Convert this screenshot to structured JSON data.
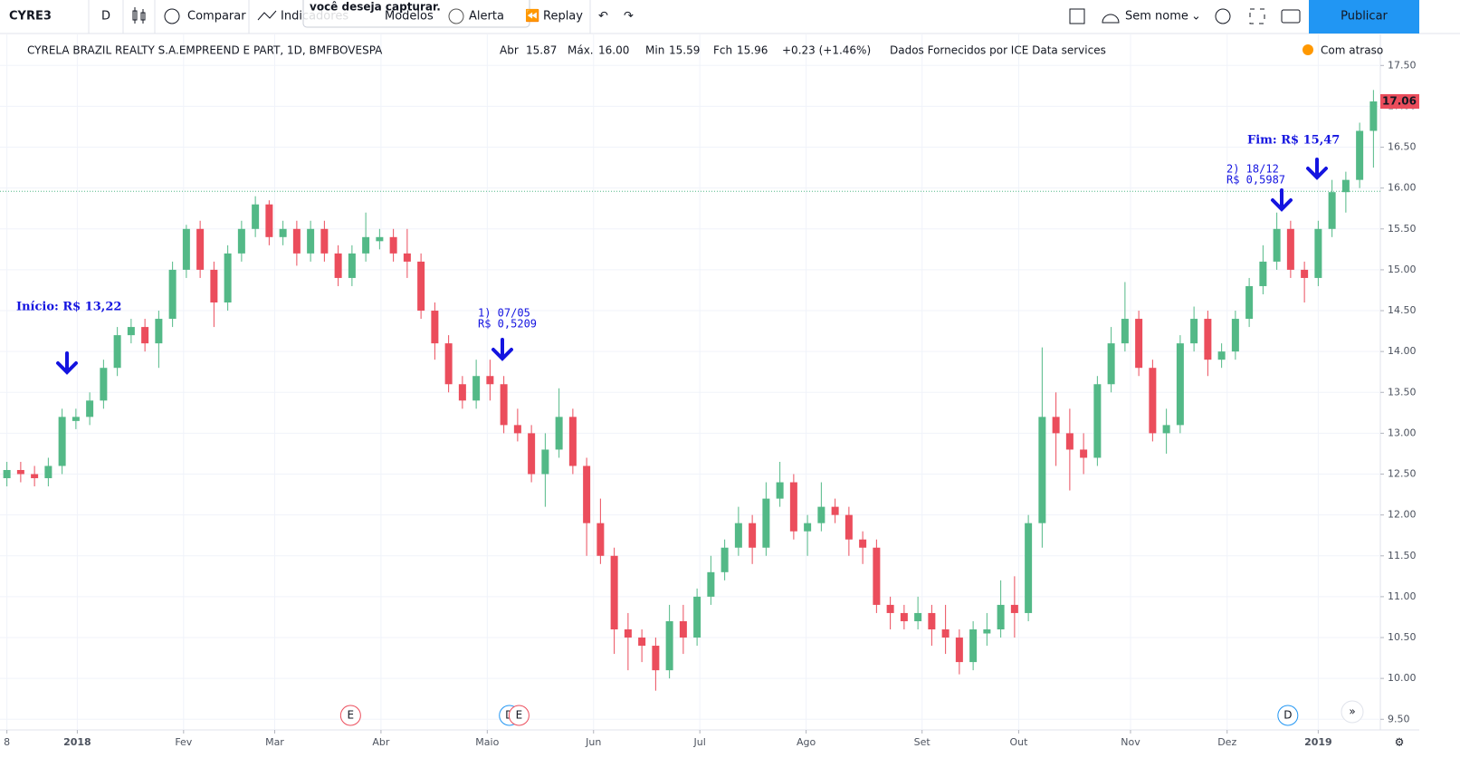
{
  "toolbar": {
    "symbol": "CYRE3",
    "interval": "D",
    "compare": "Comparar",
    "indicators": "Indicadores",
    "templates": "Modelos",
    "alert": "Alerta",
    "replay": "Replay",
    "layout": "Sem nome",
    "publish": "Publicar",
    "tooltip": "você deseja capturar."
  },
  "chart_data": {
    "type": "candlestick",
    "title": "CYRELA BRAZIL REALTY S.A.EMPREEND E PART, 1D, BMFBOVESPA",
    "legend": {
      "open_label": "Abr",
      "open": "15.87",
      "high_label": "Máx.",
      "high": "16.00",
      "low_label": "Min",
      "low": "15.59",
      "close_label": "Fch",
      "close": "15.96",
      "change": "+0.23 (+1.46%)",
      "source": "Dados Fornecidos por ICE Data services",
      "delay": "Com atraso"
    },
    "up_color": "#53b987",
    "down_color": "#eb4d5c",
    "ohlc": [
      [
        12.45,
        12.65,
        12.35,
        12.55
      ],
      [
        12.55,
        12.65,
        12.4,
        12.5
      ],
      [
        12.5,
        12.6,
        12.35,
        12.45
      ],
      [
        12.45,
        12.7,
        12.35,
        12.6
      ],
      [
        12.6,
        13.3,
        12.5,
        13.2
      ],
      [
        13.15,
        13.3,
        13.05,
        13.2
      ],
      [
        13.2,
        13.5,
        13.1,
        13.4
      ],
      [
        13.4,
        13.9,
        13.3,
        13.8
      ],
      [
        13.8,
        14.3,
        13.7,
        14.2
      ],
      [
        14.2,
        14.4,
        14.1,
        14.3
      ],
      [
        14.3,
        14.4,
        14.0,
        14.1
      ],
      [
        14.1,
        14.5,
        13.8,
        14.4
      ],
      [
        14.4,
        15.1,
        14.3,
        15.0
      ],
      [
        15.0,
        15.55,
        14.9,
        15.5
      ],
      [
        15.5,
        15.6,
        14.9,
        15.0
      ],
      [
        15.0,
        15.1,
        14.3,
        14.6
      ],
      [
        14.6,
        15.3,
        14.5,
        15.2
      ],
      [
        15.2,
        15.6,
        15.1,
        15.5
      ],
      [
        15.5,
        15.9,
        15.4,
        15.8
      ],
      [
        15.8,
        15.85,
        15.3,
        15.4
      ],
      [
        15.4,
        15.6,
        15.3,
        15.5
      ],
      [
        15.5,
        15.6,
        15.05,
        15.2
      ],
      [
        15.2,
        15.6,
        15.1,
        15.5
      ],
      [
        15.5,
        15.6,
        15.1,
        15.2
      ],
      [
        15.2,
        15.3,
        14.8,
        14.9
      ],
      [
        14.9,
        15.3,
        14.8,
        15.2
      ],
      [
        15.2,
        15.7,
        15.1,
        15.4
      ],
      [
        15.35,
        15.5,
        15.25,
        15.4
      ],
      [
        15.4,
        15.5,
        15.1,
        15.2
      ],
      [
        15.2,
        15.5,
        14.9,
        15.1
      ],
      [
        15.1,
        15.2,
        14.4,
        14.5
      ],
      [
        14.5,
        14.6,
        13.9,
        14.1
      ],
      [
        14.1,
        14.2,
        13.5,
        13.6
      ],
      [
        13.6,
        13.7,
        13.3,
        13.4
      ],
      [
        13.4,
        13.9,
        13.3,
        13.7
      ],
      [
        13.7,
        13.9,
        13.4,
        13.6
      ],
      [
        13.6,
        13.7,
        13.0,
        13.1
      ],
      [
        13.1,
        13.3,
        12.9,
        13.0
      ],
      [
        13.0,
        13.1,
        12.4,
        12.5
      ],
      [
        12.5,
        13.0,
        12.1,
        12.8
      ],
      [
        12.8,
        13.55,
        12.7,
        13.2
      ],
      [
        13.2,
        13.3,
        12.5,
        12.6
      ],
      [
        12.6,
        12.7,
        11.5,
        11.9
      ],
      [
        11.9,
        12.2,
        11.4,
        11.5
      ],
      [
        11.5,
        11.6,
        10.3,
        10.6
      ],
      [
        10.6,
        10.8,
        10.1,
        10.5
      ],
      [
        10.5,
        10.6,
        10.2,
        10.4
      ],
      [
        10.4,
        10.5,
        9.85,
        10.1
      ],
      [
        10.1,
        10.9,
        10.0,
        10.7
      ],
      [
        10.7,
        10.9,
        10.3,
        10.5
      ],
      [
        10.5,
        11.1,
        10.4,
        11.0
      ],
      [
        11.0,
        11.5,
        10.9,
        11.3
      ],
      [
        11.3,
        11.7,
        11.2,
        11.6
      ],
      [
        11.6,
        12.1,
        11.5,
        11.9
      ],
      [
        11.9,
        12.0,
        11.4,
        11.6
      ],
      [
        11.6,
        12.4,
        11.5,
        12.2
      ],
      [
        12.2,
        12.65,
        12.1,
        12.4
      ],
      [
        12.4,
        12.5,
        11.7,
        11.8
      ],
      [
        11.8,
        12.0,
        11.5,
        11.9
      ],
      [
        11.9,
        12.4,
        11.8,
        12.1
      ],
      [
        12.1,
        12.2,
        11.9,
        12.0
      ],
      [
        12.0,
        12.1,
        11.5,
        11.7
      ],
      [
        11.7,
        11.8,
        11.4,
        11.6
      ],
      [
        11.6,
        11.7,
        10.8,
        10.9
      ],
      [
        10.9,
        11.0,
        10.6,
        10.8
      ],
      [
        10.8,
        10.9,
        10.6,
        10.7
      ],
      [
        10.7,
        11.0,
        10.6,
        10.8
      ],
      [
        10.8,
        10.9,
        10.4,
        10.6
      ],
      [
        10.6,
        10.9,
        10.3,
        10.5
      ],
      [
        10.5,
        10.6,
        10.05,
        10.2
      ],
      [
        10.2,
        10.7,
        10.1,
        10.6
      ],
      [
        10.55,
        10.8,
        10.4,
        10.6
      ],
      [
        10.6,
        11.2,
        10.5,
        10.9
      ],
      [
        10.9,
        11.25,
        10.5,
        10.8
      ],
      [
        10.8,
        12.0,
        10.7,
        11.9
      ],
      [
        11.9,
        14.05,
        11.6,
        13.2
      ],
      [
        13.2,
        13.5,
        12.6,
        13.0
      ],
      [
        13.0,
        13.3,
        12.3,
        12.8
      ],
      [
        12.8,
        13.0,
        12.5,
        12.7
      ],
      [
        12.7,
        13.7,
        12.6,
        13.6
      ],
      [
        13.6,
        14.3,
        13.5,
        14.1
      ],
      [
        14.1,
        14.85,
        14.0,
        14.4
      ],
      [
        14.4,
        14.5,
        13.7,
        13.8
      ],
      [
        13.8,
        13.9,
        12.9,
        13.0
      ],
      [
        13.0,
        13.3,
        12.75,
        13.1
      ],
      [
        13.1,
        14.2,
        13.0,
        14.1
      ],
      [
        14.1,
        14.55,
        14.0,
        14.4
      ],
      [
        14.4,
        14.5,
        13.7,
        13.9
      ],
      [
        13.9,
        14.1,
        13.8,
        14.0
      ],
      [
        14.0,
        14.5,
        13.9,
        14.4
      ],
      [
        14.4,
        14.9,
        14.3,
        14.8
      ],
      [
        14.8,
        15.3,
        14.7,
        15.1
      ],
      [
        15.1,
        15.7,
        15.0,
        15.5
      ],
      [
        15.5,
        15.6,
        14.9,
        15.0
      ],
      [
        15.0,
        15.1,
        14.6,
        14.9
      ],
      [
        14.9,
        15.6,
        14.8,
        15.5
      ],
      [
        15.5,
        16.1,
        15.4,
        15.95
      ],
      [
        15.95,
        16.2,
        15.7,
        16.1
      ],
      [
        16.1,
        16.8,
        16.0,
        16.7
      ],
      [
        16.7,
        17.2,
        16.25,
        17.06
      ]
    ],
    "xlim": [
      0,
      100
    ],
    "xticks": [
      {
        "value": 0.5,
        "label": "8"
      },
      {
        "value": 5.6,
        "label": "2018"
      },
      {
        "value": 13.3,
        "label": "Fev"
      },
      {
        "value": 19.9,
        "label": "Mar"
      },
      {
        "value": 27.6,
        "label": "Abr"
      },
      {
        "value": 35.3,
        "label": "Maio"
      },
      {
        "value": 43,
        "label": "Jun"
      },
      {
        "value": 50.7,
        "label": "Jul"
      },
      {
        "value": 58.4,
        "label": "Ago"
      },
      {
        "value": 66.8,
        "label": "Set"
      },
      {
        "value": 73.8,
        "label": "Out"
      },
      {
        "value": 81.9,
        "label": "Nov"
      },
      {
        "value": 88.9,
        "label": "Dez"
      },
      {
        "value": 95.5,
        "label": "2019"
      }
    ],
    "ylim": [
      9.37,
      17.88
    ],
    "yticks": [
      {
        "value": 9.5,
        "label": "9.50"
      },
      {
        "value": 10,
        "label": "10.00"
      },
      {
        "value": 10.5,
        "label": "10.50"
      },
      {
        "value": 11,
        "label": "11.00"
      },
      {
        "value": 11.5,
        "label": "11.50"
      },
      {
        "value": 12,
        "label": "12.00"
      },
      {
        "value": 12.5,
        "label": "12.50"
      },
      {
        "value": 13,
        "label": "13.00"
      },
      {
        "value": 13.5,
        "label": "13.50"
      },
      {
        "value": 14,
        "label": "14.00"
      },
      {
        "value": 14.5,
        "label": "14.50"
      },
      {
        "value": 15,
        "label": "15.00"
      },
      {
        "value": 15.5,
        "label": "15.50"
      },
      {
        "value": 16,
        "label": "16.00"
      },
      {
        "value": 16.5,
        "label": "16.50"
      },
      {
        "value": 17,
        "label": "17.00"
      },
      {
        "value": 17.5,
        "label": "17.50"
      }
    ],
    "grid": true,
    "events": [
      {
        "x": 25.4,
        "label": "E"
      },
      {
        "x": 36.9,
        "label": "D"
      },
      {
        "x": 37.6,
        "label": "E"
      },
      {
        "x": 93.3,
        "label": "D"
      }
    ],
    "annotations": {
      "start": "Início: R$ 13,22",
      "div1_date": "1) 07/05",
      "div1_value": "R$ 0,5209",
      "div2_date": "2) 18/12",
      "div2_value": "R$ 0,5987",
      "end": "Fim: R$ 15,47"
    }
  }
}
